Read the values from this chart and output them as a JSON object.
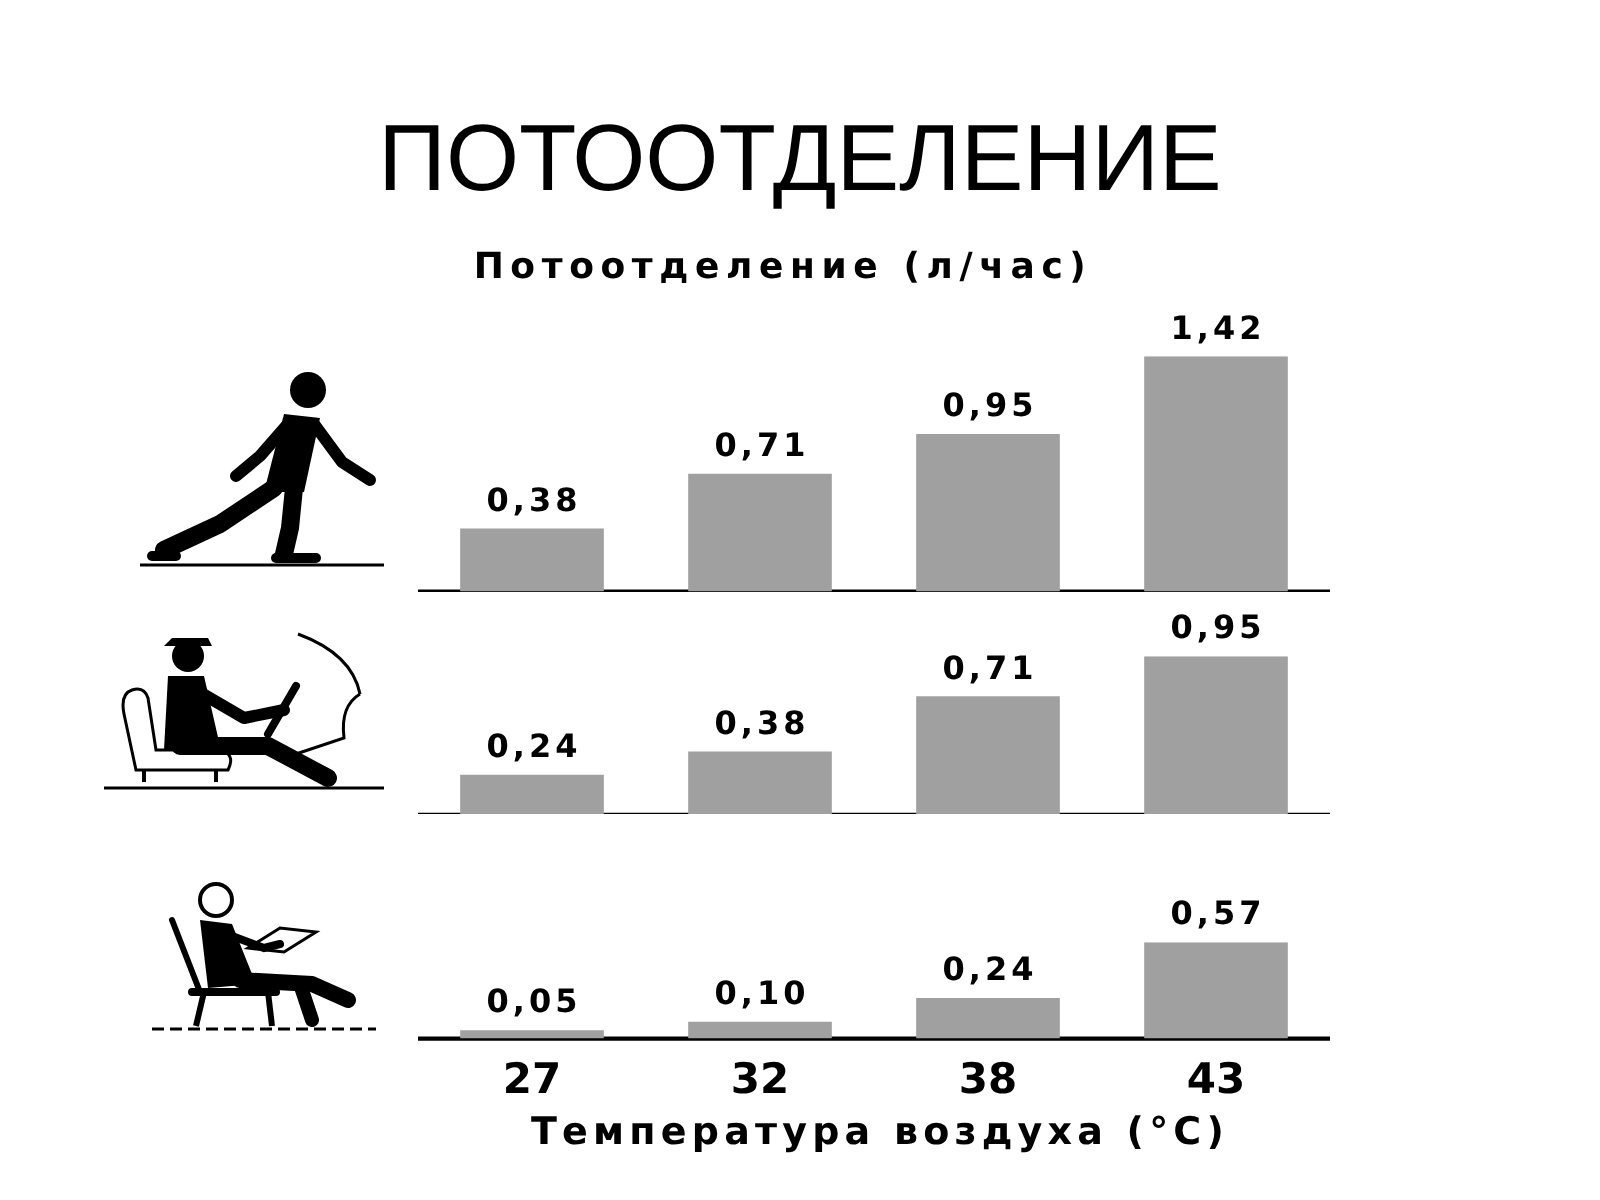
{
  "chart_data": [
    {
      "type": "bar",
      "title": "ПОТООТДЕЛЕНИЕ",
      "subtitle": "Потоотделение (л/час)",
      "categories": [
        "27",
        "32",
        "38",
        "43"
      ],
      "values": [
        0.38,
        0.71,
        0.95,
        1.42
      ],
      "value_labels": [
        "0,38",
        "0,71",
        "0,95",
        "1,42"
      ],
      "color": "#a0a0a0",
      "tick_labels": false
    },
    {
      "type": "bar",
      "categories": [
        "27",
        "32",
        "38",
        "43"
      ],
      "values": [
        0.24,
        0.38,
        0.71,
        0.95
      ],
      "value_labels": [
        "0,24",
        "0,38",
        "0,71",
        "0,95"
      ],
      "color": "#a0a0a0",
      "tick_labels": false
    },
    {
      "type": "bar",
      "xlabel": "Температура воздуха (°C)",
      "categories": [
        "27",
        "32",
        "38",
        "43"
      ],
      "values": [
        0.05,
        0.1,
        0.24,
        0.57
      ],
      "value_labels": [
        "0,05",
        "0,10",
        "0,24",
        "0,57"
      ],
      "color": "#a0a0a0",
      "tick_labels": "x"
    }
  ]
}
